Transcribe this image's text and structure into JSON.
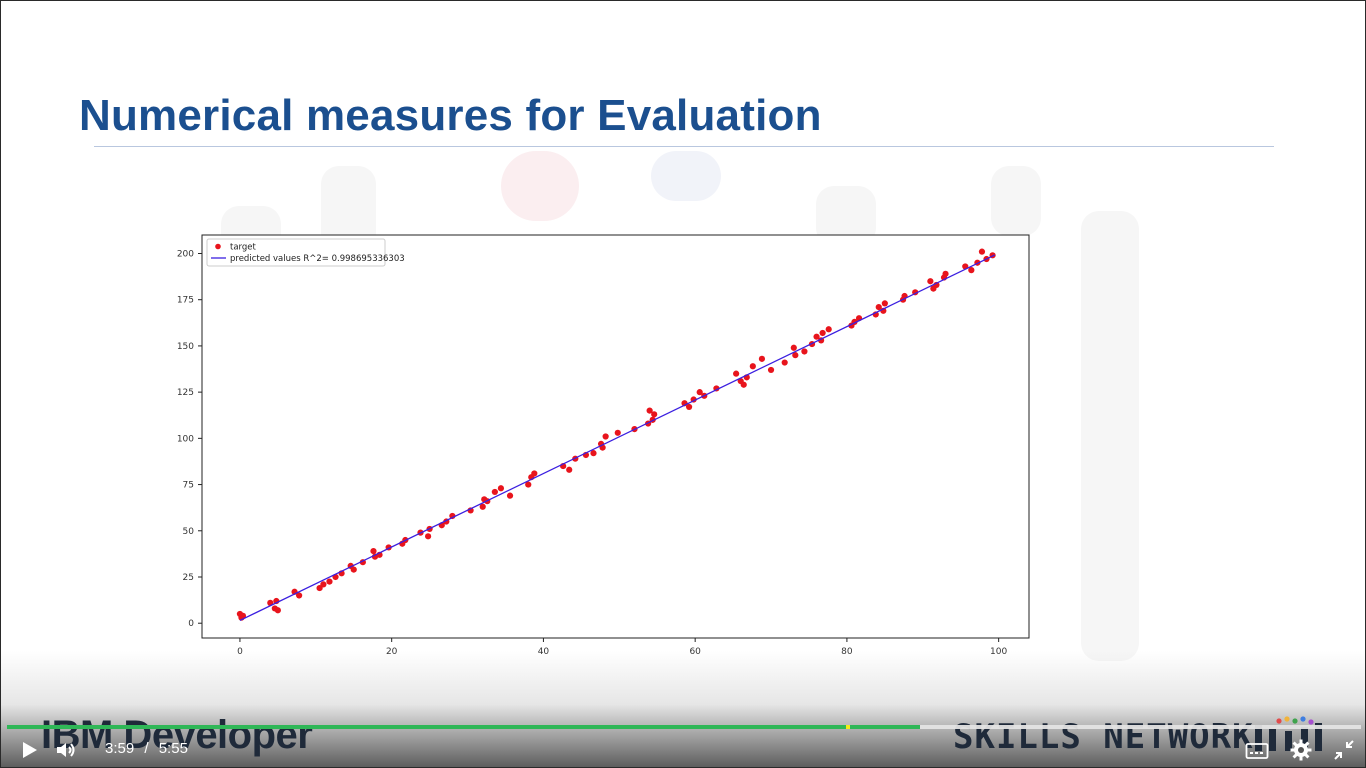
{
  "slide": {
    "title": "Numerical measures for Evaluation"
  },
  "chart_data": {
    "type": "scatter",
    "title": "",
    "xlabel": "",
    "ylabel": "",
    "xlim": [
      -5,
      104
    ],
    "ylim": [
      -8,
      210
    ],
    "xticks": [
      0,
      20,
      40,
      60,
      80,
      100
    ],
    "yticks": [
      0,
      25,
      50,
      75,
      100,
      125,
      150,
      175,
      200
    ],
    "legend_position": "top-left",
    "series": [
      {
        "name": "target",
        "kind": "scatter",
        "color": "#e8141c",
        "points": [
          [
            0,
            5
          ],
          [
            0.2,
            3
          ],
          [
            0.4,
            4
          ],
          [
            4,
            11
          ],
          [
            4.6,
            8
          ],
          [
            4.8,
            12
          ],
          [
            5,
            7
          ],
          [
            7.2,
            17
          ],
          [
            7.8,
            15
          ],
          [
            10.5,
            19
          ],
          [
            11,
            21
          ],
          [
            11.8,
            22.5
          ],
          [
            12.6,
            25
          ],
          [
            13.4,
            27
          ],
          [
            14.6,
            31
          ],
          [
            15,
            29
          ],
          [
            16.2,
            33
          ],
          [
            17.6,
            39
          ],
          [
            17.8,
            36
          ],
          [
            18.4,
            37
          ],
          [
            19.6,
            41
          ],
          [
            21.4,
            43
          ],
          [
            21.8,
            45
          ],
          [
            23.8,
            49
          ],
          [
            24.8,
            47
          ],
          [
            25,
            51
          ],
          [
            26.6,
            53
          ],
          [
            27.2,
            55
          ],
          [
            28,
            58
          ],
          [
            30.4,
            61
          ],
          [
            32,
            63
          ],
          [
            32.2,
            67
          ],
          [
            32.6,
            66
          ],
          [
            33.6,
            71
          ],
          [
            34.4,
            73
          ],
          [
            35.6,
            69
          ],
          [
            38,
            75
          ],
          [
            38.4,
            79
          ],
          [
            38.8,
            81
          ],
          [
            42.6,
            85
          ],
          [
            43.4,
            83
          ],
          [
            44.2,
            89
          ],
          [
            45.6,
            91
          ],
          [
            46.6,
            92
          ],
          [
            47.6,
            97
          ],
          [
            47.8,
            95
          ],
          [
            48.2,
            101
          ],
          [
            49.8,
            103
          ],
          [
            52,
            105
          ],
          [
            53.8,
            108
          ],
          [
            54,
            115
          ],
          [
            54.4,
            110
          ],
          [
            54.6,
            113
          ],
          [
            58.6,
            119
          ],
          [
            59.2,
            117
          ],
          [
            59.8,
            121
          ],
          [
            60.6,
            125
          ],
          [
            61.2,
            123
          ],
          [
            62.8,
            127
          ],
          [
            65.4,
            135
          ],
          [
            66,
            131
          ],
          [
            66.4,
            129
          ],
          [
            66.8,
            133
          ],
          [
            67.6,
            139
          ],
          [
            68.8,
            143
          ],
          [
            70,
            137
          ],
          [
            71.8,
            141
          ],
          [
            73,
            149
          ],
          [
            73.2,
            145
          ],
          [
            74.4,
            147
          ],
          [
            75.4,
            151
          ],
          [
            76,
            155
          ],
          [
            76.6,
            153
          ],
          [
            76.8,
            157
          ],
          [
            77.6,
            159
          ],
          [
            80.6,
            161
          ],
          [
            81,
            163
          ],
          [
            81.6,
            165
          ],
          [
            83.8,
            167
          ],
          [
            84.2,
            171
          ],
          [
            84.8,
            169
          ],
          [
            85,
            173
          ],
          [
            87.4,
            175
          ],
          [
            87.6,
            177
          ],
          [
            89,
            179
          ],
          [
            91,
            185
          ],
          [
            91.4,
            181
          ],
          [
            91.8,
            183
          ],
          [
            92.8,
            187
          ],
          [
            93,
            189
          ],
          [
            95.6,
            193
          ],
          [
            96.4,
            191
          ],
          [
            97.2,
            195
          ],
          [
            97.8,
            201
          ],
          [
            98.4,
            197
          ],
          [
            99.2,
            199
          ]
        ]
      },
      {
        "name": "predicted values R^2= 0.998695336303",
        "kind": "line",
        "color": "#3b1fe0",
        "points": [
          [
            0,
            1.5
          ],
          [
            99.5,
            199.2
          ]
        ]
      }
    ]
  },
  "player": {
    "current_time": "3:59",
    "separator": "/",
    "duration": "5:55",
    "played_fraction": 0.674,
    "loaded_fraction": 1.0,
    "marker_fraction": 0.62,
    "accent_color": "#2fb757",
    "icons": [
      "play-icon",
      "volume-icon",
      "captions-icon",
      "settings-icon",
      "exit-fullscreen-icon"
    ]
  },
  "footer": {
    "left_brand": "IBM Developer",
    "right_brand": "SKILLS NETWORK"
  }
}
